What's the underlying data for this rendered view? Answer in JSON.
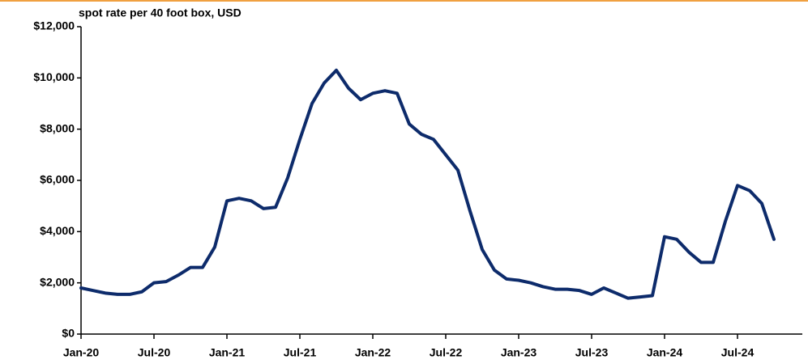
{
  "chart_data": {
    "type": "line",
    "title": "spot rate per 40 foot box, USD",
    "categories": [
      "Jan-20",
      null,
      null,
      null,
      null,
      null,
      "Jul-20",
      null,
      null,
      null,
      null,
      null,
      "Jan-21",
      null,
      null,
      null,
      null,
      null,
      "Jul-21",
      null,
      null,
      null,
      null,
      null,
      "Jan-22",
      null,
      null,
      null,
      null,
      null,
      "Jul-22",
      null,
      null,
      null,
      null,
      null,
      "Jan-23",
      null,
      null,
      null,
      null,
      null,
      "Jul-23",
      null,
      null,
      null,
      null,
      null,
      "Jan-24",
      null,
      null,
      null,
      null,
      null,
      "Jul-24",
      null,
      null,
      null
    ],
    "values": [
      1800,
      1700,
      1600,
      1550,
      1550,
      1650,
      2000,
      2050,
      2300,
      2600,
      2600,
      3400,
      5200,
      5300,
      5200,
      4900,
      4950,
      6100,
      7600,
      9000,
      9800,
      10300,
      9600,
      9150,
      9400,
      9500,
      9400,
      8200,
      7800,
      7600,
      7000,
      6400,
      4800,
      3300,
      2500,
      2150,
      2100,
      2000,
      1850,
      1750,
      1750,
      1700,
      1550,
      1800,
      1600,
      1400,
      1450,
      1500,
      3800,
      3700,
      3200,
      2800,
      2800,
      4400,
      5800,
      5600,
      5100,
      3700
    ],
    "color": "#0d2b6b",
    "ylim": [
      0,
      12000
    ],
    "yticks": [
      {
        "value": 0,
        "label": "$0"
      },
      {
        "value": 2000,
        "label": "$2,000"
      },
      {
        "value": 4000,
        "label": "$4,000"
      },
      {
        "value": 6000,
        "label": "$6,000"
      },
      {
        "value": 8000,
        "label": "$8,000"
      },
      {
        "value": 10000,
        "label": "$10,000"
      },
      {
        "value": 12000,
        "label": "$12,000"
      }
    ],
    "grid": false
  }
}
